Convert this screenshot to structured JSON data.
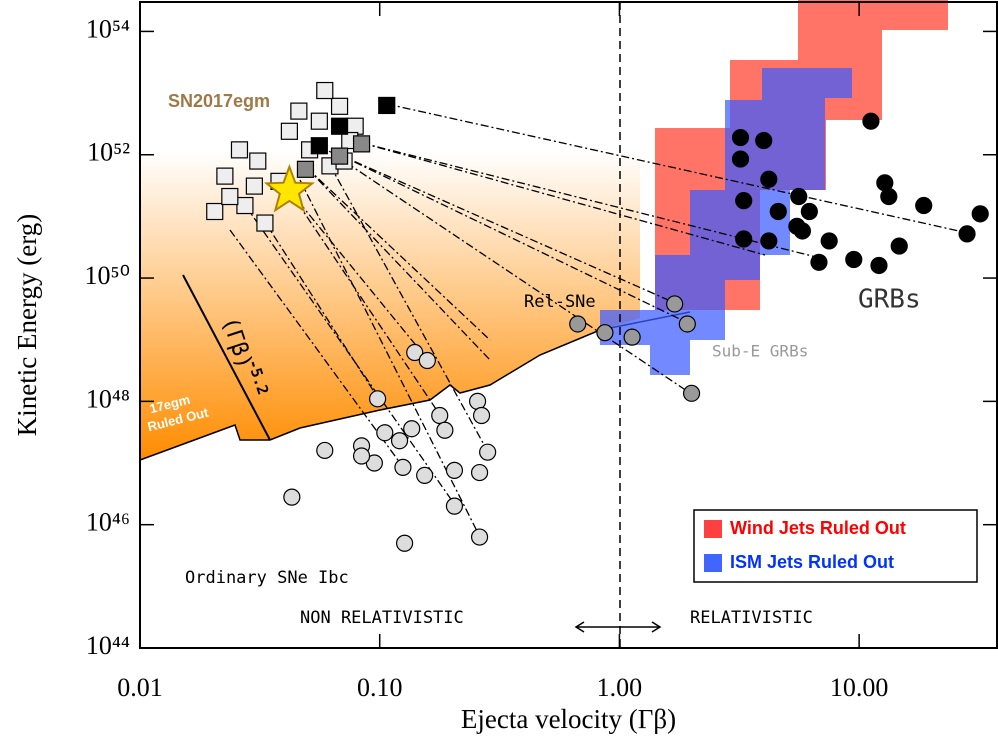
{
  "chart_data": {
    "type": "scatter",
    "xlabel": "Ejecta velocity (Γβ)",
    "ylabel": "Kinetic Energy (erg)",
    "xscale": "log",
    "yscale": "log",
    "xlim": [
      0.01,
      37.6
    ],
    "ylim": [
      1e+44,
      3e+54
    ],
    "xticks": [
      0.01,
      {
        "value": 0.1,
        "label": "0.10"
      },
      {
        "value": 1,
        "label": "1.00"
      },
      {
        "value": 10,
        "label": "10.00"
      }
    ],
    "yticks": [
      {
        "value": 1e+44,
        "label": "10⁴⁴"
      },
      {
        "value": 1e+46,
        "label": "10⁴⁶"
      },
      {
        "value": 1e+48,
        "label": "10⁴⁸"
      },
      {
        "value": 1e+50,
        "label": "10⁵⁰"
      },
      {
        "value": 1e+52,
        "label": "10⁵²"
      },
      {
        "value": 1e+54,
        "label": "10⁵⁴"
      }
    ],
    "series": [
      {
        "marker": "square",
        "color": "#eeeeee",
        "x": [
          0.026,
          0.031,
          0.0226,
          0.03,
          0.0205,
          0.0274,
          0.0332,
          0.046,
          0.056,
          0.068,
          0.079,
          0.038,
          0.051,
          0.062,
          0.075,
          0.0237,
          0.042,
          0.059,
          0.071
        ],
        "y": [
          1.2e+52,
          7.9e+51,
          4.5e+51,
          3.1e+51,
          1.2e+51,
          1.5e+51,
          7.8e+50,
          5.1e+52,
          3.5e+52,
          6.1e+52,
          2.9e+52,
          3.7e+51,
          1.2e+52,
          6.6e+51,
          1.7e+52,
          2.1e+51,
          2.4e+52,
          1.1e+53,
          7.9e+51
        ]
      },
      {
        "marker": "square",
        "color": "#888888",
        "x": [
          0.084,
          0.068,
          0.049
        ],
        "y": [
          1.5e+52,
          9.5e+51,
          5.8e+51
        ]
      },
      {
        "marker": "square",
        "color": "#000000",
        "x": [
          0.107,
          0.056,
          0.068
        ],
        "y": [
          6.3e+52,
          1.4e+52,
          2.9e+52
        ]
      },
      {
        "marker": "circle",
        "color": "#dddddd",
        "x": [
          0.043,
          0.059,
          0.084,
          0.095,
          0.105,
          0.121,
          0.136,
          0.098,
          0.084,
          0.125,
          0.14,
          0.158,
          0.178,
          0.187,
          0.205,
          0.154,
          0.256,
          0.266,
          0.282,
          0.261,
          0.205,
          0.127,
          0.261
        ],
        "y": [
          2.8e+46,
          1.6e+47,
          1.9e+47,
          1e+47,
          3.1e+47,
          2.3e+47,
          3.6e+47,
          1.1e+48,
          1.3e+47,
          8.5e+46,
          6.2e+48,
          4.6e+48,
          5.9e+47,
          3.4e+47,
          7.6e+46,
          6.3e+46,
          1e+48,
          5.9e+47,
          1.5e+47,
          7e+46,
          2e+46,
          5e+45,
          6.3e+45
        ]
      },
      {
        "marker": "circle",
        "color": "#999999",
        "x": [
          0.67,
          0.87,
          1.13,
          1.7,
          1.92,
          2.0
        ],
        "y": [
          1.8e+49,
          1.3e+49,
          1.1e+49,
          3.8e+49,
          1.8e+49,
          1.35e+48
        ]
      },
      {
        "marker": "circle",
        "color": "#000000",
        "x": [
          3.2,
          4.0,
          3.2,
          4.2,
          3.3,
          5.6,
          4.6,
          6.2,
          5.5,
          12.8,
          13.3,
          18.6,
          32,
          3.3,
          4.2,
          5.8,
          7.5,
          9.5,
          12.1,
          14.7,
          6.8,
          11.2,
          28.2
        ],
        "y": [
          1.9e+52,
          1.7e+52,
          8.5e+51,
          4e+51,
          1.8e+51,
          2.1e+51,
          1.2e+51,
          1.2e+51,
          6.9e+50,
          3.5e+51,
          2.1e+51,
          1.5e+51,
          1.1e+51,
          4.3e+50,
          4e+50,
          5.8e+50,
          4e+50,
          2e+50,
          1.6e+50,
          3.3e+50,
          1.8e+50,
          3.5e+52,
          5.2e+50
        ]
      },
      {
        "marker": "star",
        "color": "#ffe600",
        "x": [
          0.042
        ],
        "y": [
          2.6e+51
        ]
      }
    ],
    "annotations": [
      {
        "text": "SN2017egm",
        "color": "#a07845"
      },
      {
        "text": "Rel-SNe",
        "color": "#000000"
      },
      {
        "text": "Sub-E GRBs",
        "color": "#999999"
      },
      {
        "text": "GRBs",
        "color": "#333333"
      },
      {
        "text": "17egm",
        "color": "#ffffff"
      },
      {
        "text": "Ruled Out",
        "color": "#ffffff"
      },
      {
        "text": "(Γβ)",
        "color": "#000000"
      },
      {
        "text": "-5.2",
        "color": "#000000"
      },
      {
        "text": "Ordinary SNe Ibc",
        "color": "#000000"
      },
      {
        "text": "NON RELATIVISTIC",
        "color": "#000000"
      },
      {
        "text": "RELATIVISTIC",
        "color": "#000000"
      }
    ],
    "legend": {
      "corner": "lower right",
      "entries": [
        {
          "label": "Wind Jets Ruled Out",
          "color": "#ff0000"
        },
        {
          "label": "ISM Jets Ruled Out",
          "color": "#0033ff"
        }
      ]
    }
  }
}
